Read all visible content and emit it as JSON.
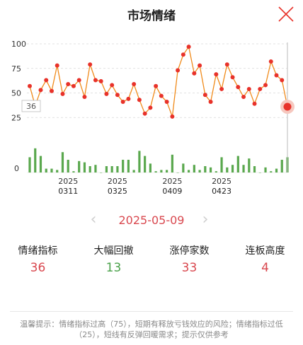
{
  "header": {
    "title": "市场情绪",
    "close_icon": "close-icon"
  },
  "colors": {
    "line": "#f08a1a",
    "point": "#e8322a",
    "bar": "#5aa84e",
    "red_text": "#d9484f",
    "green_text": "#4aa14a"
  },
  "chart_data": {
    "type": "line+bar",
    "y_ticks": [
      "100",
      "75",
      "50",
      "25",
      "0"
    ],
    "ylim": [
      0,
      100
    ],
    "grid": true,
    "x_labels": [
      {
        "year": "2025",
        "day": "0311",
        "index": 7
      },
      {
        "year": "2025",
        "day": "0325",
        "index": 16
      },
      {
        "year": "2025",
        "day": "0409",
        "index": 26
      },
      {
        "year": "2025",
        "day": "0423",
        "index": 35
      }
    ],
    "sentiment": [
      57,
      37,
      53,
      63,
      52,
      78,
      49,
      59,
      57,
      63,
      46,
      79,
      63,
      62,
      49,
      58,
      48,
      41,
      44,
      59,
      43,
      29,
      35,
      57,
      47,
      41,
      26,
      73,
      89,
      97,
      70,
      78,
      48,
      41,
      69,
      54,
      79,
      66,
      56,
      46,
      54,
      39,
      54,
      58,
      82,
      68,
      63,
      36
    ],
    "bars": [
      12,
      19,
      13,
      3,
      3,
      2,
      16,
      10,
      1,
      9,
      8,
      5,
      6,
      0,
      5,
      5,
      5,
      10,
      10,
      2,
      17,
      13,
      7,
      1,
      2,
      2,
      14,
      0,
      7,
      2,
      6,
      2,
      5,
      4,
      1,
      12,
      4,
      6,
      13,
      6,
      11,
      5,
      0,
      4,
      1,
      3,
      10,
      12
    ],
    "cursor_label": "36"
  },
  "date_nav": {
    "date": "2025-05-09"
  },
  "stats": [
    {
      "label": "情绪指标",
      "value": "36",
      "color": "#d9484f"
    },
    {
      "label": "大幅回撤",
      "value": "13",
      "color": "#4aa14a"
    },
    {
      "label": "涨停家数",
      "value": "33",
      "color": "#d9484f"
    },
    {
      "label": "连板高度",
      "value": "4",
      "color": "#d9484f"
    }
  ],
  "tip": "温馨提示：情绪指标过高（75），短期有释放亏钱效应的风险；情绪指标过低（25），短线有反弹回暖需求；提示仅供参考"
}
